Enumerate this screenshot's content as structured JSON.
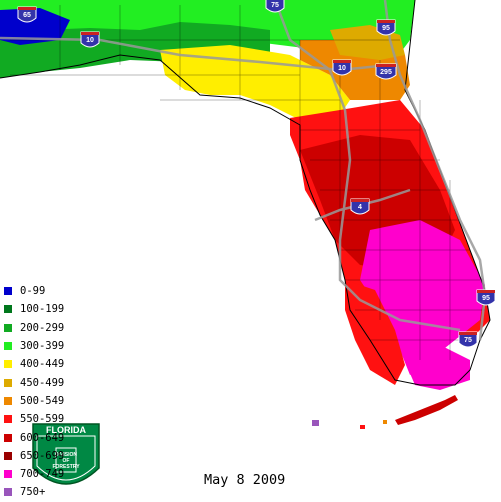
{
  "date": "May 8 2009",
  "legend": [
    {
      "label": "0-99",
      "color": "#0000cc"
    },
    {
      "label": "100-199",
      "color": "#00771c"
    },
    {
      "label": "200-299",
      "color": "#11aa22"
    },
    {
      "label": "300-399",
      "color": "#22ee22"
    },
    {
      "label": "400-449",
      "color": "#ffee00"
    },
    {
      "label": "450-499",
      "color": "#ddaa00"
    },
    {
      "label": "500-549",
      "color": "#ee8800"
    },
    {
      "label": "550-599",
      "color": "#ff1111"
    },
    {
      "label": "600-649",
      "color": "#cc0000"
    },
    {
      "label": "650-699",
      "color": "#990000"
    },
    {
      "label": "700-749",
      "color": "#ff00cc"
    },
    {
      "label": "750+",
      "color": "#9955bb"
    }
  ],
  "highways": [
    {
      "label": "65"
    },
    {
      "label": "10"
    },
    {
      "label": "75"
    },
    {
      "label": "95"
    },
    {
      "label": "10"
    },
    {
      "label": "295"
    },
    {
      "label": "4"
    },
    {
      "label": "95"
    },
    {
      "label": "75"
    }
  ],
  "seal": {
    "top": "FLORIDA",
    "inner_lines": [
      "DIVISION",
      "OF",
      "FORESTRY"
    ]
  }
}
